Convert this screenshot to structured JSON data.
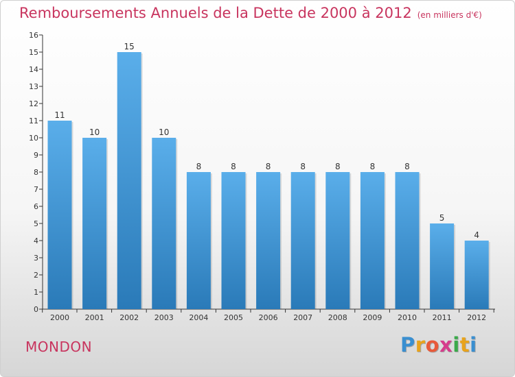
{
  "header": {
    "title": "Remboursements Annuels de la Dette de 2000 à 2012",
    "subtitle": "(en milliers d'€)"
  },
  "footer": {
    "commune": "MONDON",
    "logo_letters": [
      "P",
      "r",
      "o",
      "x",
      "i",
      "t",
      "i"
    ]
  },
  "colors": {
    "title": "#c8345e",
    "bar_top": "#5aaeea",
    "bar_bottom": "#2a7ab8",
    "logo": [
      "#3a8fd0",
      "#e8a31c",
      "#e85a3a",
      "#d63b8c",
      "#3aaa4a",
      "#e8a31c",
      "#3a8fd0"
    ]
  },
  "chart_data": {
    "type": "bar",
    "categories": [
      "2000",
      "2001",
      "2002",
      "2003",
      "2004",
      "2005",
      "2006",
      "2007",
      "2008",
      "2009",
      "2010",
      "2011",
      "2012"
    ],
    "values": [
      11,
      10,
      15,
      10,
      8,
      8,
      8,
      8,
      8,
      8,
      8,
      5,
      4
    ],
    "ylim": [
      0,
      16
    ],
    "yticks": [
      0,
      1,
      2,
      3,
      4,
      5,
      6,
      7,
      8,
      9,
      10,
      11,
      12,
      13,
      14,
      15,
      16
    ],
    "grid": false,
    "legend": "none"
  }
}
